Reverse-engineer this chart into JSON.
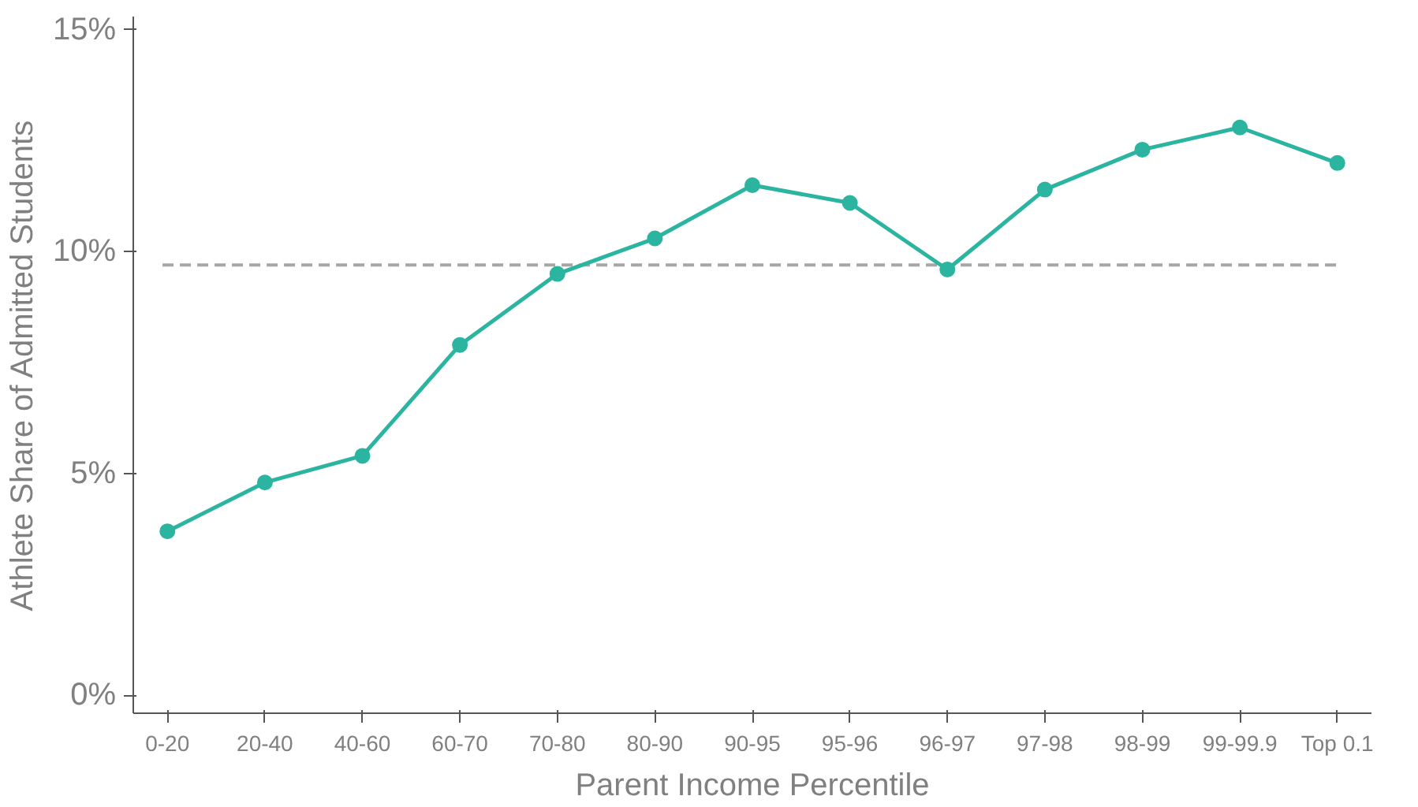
{
  "chart_data": {
    "type": "line",
    "xlabel": "Parent Income Percentile",
    "ylabel": "Athlete Share of Admitted Students",
    "categories": [
      "0-20",
      "20-40",
      "40-60",
      "60-70",
      "70-80",
      "80-90",
      "90-95",
      "95-96",
      "96-97",
      "97-98",
      "98-99",
      "99-99.9",
      "Top 0.1"
    ],
    "series": [
      {
        "color": "#2bb5a0",
        "values": [
          3.7,
          4.8,
          5.4,
          7.9,
          9.5,
          10.3,
          11.5,
          11.1,
          9.6,
          11.4,
          12.3,
          12.8,
          12.0
        ]
      }
    ],
    "ylim": [
      -0.4,
      15.3
    ],
    "yticks": [
      {
        "value": 0,
        "label": "0%"
      },
      {
        "value": 5,
        "label": "5%"
      },
      {
        "value": 10,
        "label": "10%"
      },
      {
        "value": 15,
        "label": "15%"
      }
    ],
    "ref_lines": [
      {
        "axis": "y",
        "value": 9.7,
        "label": null,
        "color": "#a6a6a6",
        "line_style": "dashed"
      }
    ],
    "grid": false,
    "marker": "circle",
    "line_style": "solid"
  }
}
